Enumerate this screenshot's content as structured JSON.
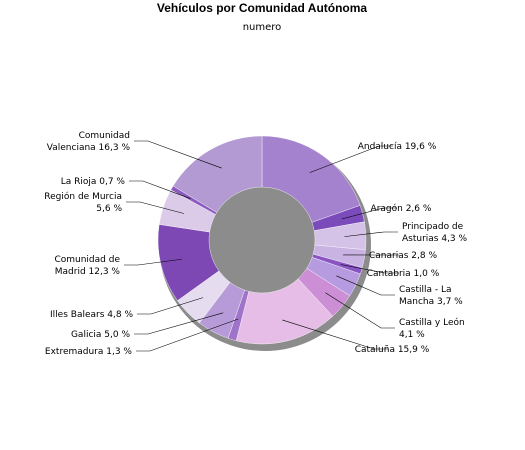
{
  "chart_data": {
    "type": "pie",
    "donut": true,
    "title": "Vehículos por Comunidad Autónoma",
    "subtitle": "numero",
    "unit": "%",
    "slices": [
      {
        "label": [
          "Andalucía 19,6 %"
        ],
        "value": 19.6,
        "color": "#a482cd"
      },
      {
        "label": [
          "Aragón 2,6 %"
        ],
        "value": 2.6,
        "color": "#7c4bbb"
      },
      {
        "label": [
          "Principado de",
          "Asturias 4,3 %"
        ],
        "value": 4.3,
        "color": "#d4c3e6"
      },
      {
        "label": [
          "Canarias 2,8 %"
        ],
        "value": 2.8,
        "color": "#c9b3e2"
      },
      {
        "label": [
          "Cantabria 1,0 %"
        ],
        "value": 1.0,
        "color": "#8a55c2"
      },
      {
        "label": [
          "Castilla - La",
          "Mancha 3,7 %"
        ],
        "value": 3.7,
        "color": "#b79be0"
      },
      {
        "label": [
          "Castilla y León",
          "4,1 %"
        ],
        "value": 4.1,
        "color": "#cc8fd6"
      },
      {
        "label": [
          "Cataluña 15,9 %"
        ],
        "value": 15.9,
        "color": "#e6bde6"
      },
      {
        "label": [
          "Extremadura 1,3 %"
        ],
        "value": 1.3,
        "color": "#9e73c9"
      },
      {
        "label": [
          "Galicia 5,0 %"
        ],
        "value": 5.0,
        "color": "#b79bd8"
      },
      {
        "label": [
          "Illes Balears 4,8 %"
        ],
        "value": 4.8,
        "color": "#e6dcf0"
      },
      {
        "label": [
          "Comunidad de",
          "Madrid 12,3 %"
        ],
        "value": 12.3,
        "color": "#7d48b3"
      },
      {
        "label": [
          "Región de Murcia",
          "5,6 %"
        ],
        "value": 5.6,
        "color": "#dccbe8"
      },
      {
        "label": [
          "La Rioja 0,7 %"
        ],
        "value": 0.7,
        "color": "#8b5bbf"
      },
      {
        "label": [
          "Comunidad",
          "Valenciana 16,3 %"
        ],
        "value": 16.3,
        "color": "#b39ad3"
      }
    ]
  }
}
